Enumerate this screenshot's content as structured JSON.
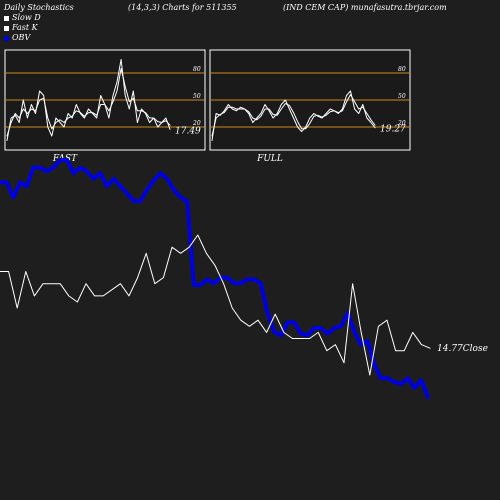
{
  "header": {
    "title": "Daily Stochastics",
    "params": "(14,3,3) Charts for 511355",
    "company": "(IND CEM CAP) munafasutra.tbrjar.com"
  },
  "legend": [
    {
      "label": "Slow  D",
      "color": "#ffffff"
    },
    {
      "label": "Fast K",
      "color": "#ffffff"
    },
    {
      "label": "OBV",
      "color": "#0000dd"
    }
  ],
  "colors": {
    "background": "#1e1e1e",
    "panel": "#1a1a1a",
    "level_line": "#c98a1a",
    "stoch_line": "#ffffff",
    "obv_line": "#0000dd",
    "price_line": "#ffffff"
  },
  "chart_data": [
    {
      "type": "line",
      "title": "FAST",
      "ylim": [
        0,
        100
      ],
      "levels": [
        20,
        50,
        80
      ],
      "tick_labels": [
        "80",
        "50",
        "20"
      ],
      "last_value_label": "17.49",
      "series": [
        {
          "values": [
            5,
            30,
            33,
            25,
            50,
            30,
            45,
            35,
            60,
            55,
            20,
            10,
            30,
            25,
            20,
            35,
            30,
            45,
            35,
            30,
            40,
            35,
            30,
            55,
            45,
            30,
            55,
            70,
            95,
            55,
            40,
            60,
            25,
            40,
            35,
            25,
            30,
            20,
            25,
            30,
            17.49
          ]
        },
        {
          "values": [
            10,
            25,
            35,
            30,
            40,
            35,
            40,
            38,
            50,
            52,
            30,
            18,
            25,
            28,
            25,
            30,
            32,
            38,
            36,
            32,
            36,
            36,
            33,
            45,
            45,
            38,
            48,
            60,
            85,
            65,
            48,
            52,
            38,
            38,
            36,
            30,
            30,
            26,
            25,
            27,
            22
          ]
        }
      ]
    },
    {
      "type": "line",
      "title": "FULL",
      "ylim": [
        0,
        100
      ],
      "levels": [
        20,
        50,
        80
      ],
      "tick_labels": [
        "80",
        "50",
        "20"
      ],
      "last_value_label": "19.27",
      "series": [
        {
          "values": [
            5,
            35,
            33,
            38,
            45,
            40,
            38,
            42,
            40,
            35,
            25,
            30,
            35,
            45,
            38,
            30,
            35,
            45,
            50,
            40,
            30,
            20,
            15,
            20,
            30,
            35,
            32,
            30,
            35,
            40,
            38,
            35,
            40,
            55,
            60,
            40,
            35,
            45,
            30,
            25,
            19.27
          ]
        },
        {
          "values": [
            10,
            30,
            34,
            36,
            42,
            42,
            40,
            40,
            40,
            37,
            30,
            28,
            32,
            40,
            40,
            34,
            33,
            40,
            46,
            44,
            36,
            26,
            18,
            18,
            24,
            32,
            33,
            31,
            33,
            37,
            38,
            36,
            38,
            48,
            56,
            48,
            40,
            42,
            35,
            28,
            22
          ]
        }
      ]
    },
    {
      "type": "line",
      "last_value_label": "14.77Close",
      "series": [
        {
          "name": "OBV",
          "values": [
            60,
            60,
            52,
            60,
            58,
            68,
            68,
            66,
            68,
            72,
            72,
            65,
            68,
            66,
            62,
            65,
            58,
            62,
            58,
            54,
            50,
            50,
            56,
            61,
            65,
            62,
            56,
            52,
            50,
            5,
            5,
            8,
            6,
            9,
            9,
            6,
            6,
            8,
            8,
            6,
            -10,
            -20,
            -22,
            -15,
            -15,
            -21,
            -22,
            -18,
            -18,
            -21,
            -18,
            -17,
            -10,
            -20,
            -27,
            -25,
            -38,
            -45,
            -45,
            -47,
            -48,
            -45,
            -50,
            -46,
            -55
          ]
        },
        {
          "name": "Close",
          "values": [
            15.4,
            15.4,
            15.1,
            15.4,
            15.2,
            15.3,
            15.3,
            15.3,
            15.2,
            15.15,
            15.3,
            15.2,
            15.2,
            15.25,
            15.3,
            15.2,
            15.35,
            15.55,
            15.3,
            15.35,
            15.6,
            15.55,
            15.6,
            15.7,
            15.55,
            15.45,
            15.3,
            15.1,
            15.0,
            14.95,
            15.0,
            14.9,
            15.05,
            14.9,
            14.85,
            14.85,
            14.85,
            14.9,
            14.75,
            14.8,
            14.65,
            15.3,
            14.9,
            14.55,
            14.95,
            15.0,
            14.75,
            14.75,
            14.9,
            14.8,
            14.77
          ]
        }
      ]
    }
  ]
}
